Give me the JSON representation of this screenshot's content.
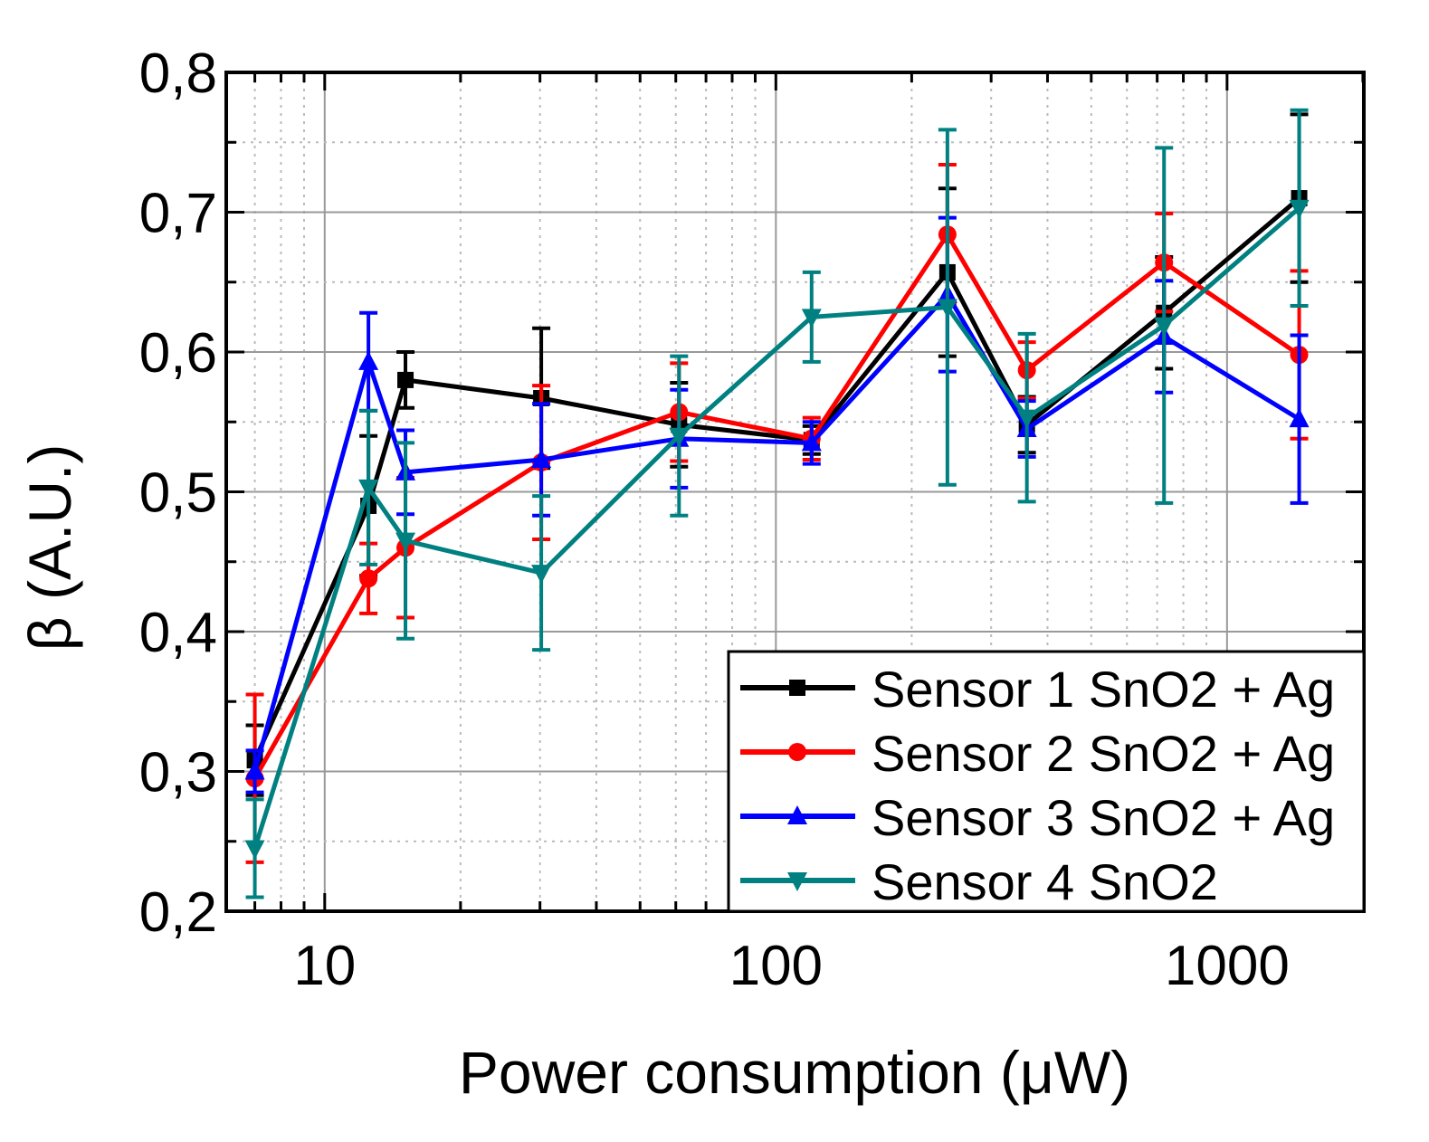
{
  "chart_data": {
    "type": "line",
    "xscale": "log",
    "xlabel": "Power consumption (μW)",
    "ylabel": "β (A.U.)",
    "xlim": [
      6.05,
      2010
    ],
    "ylim": [
      0.2,
      0.8
    ],
    "xticks": [
      10,
      100,
      1000
    ],
    "xtick_labels": [
      "10",
      "100",
      "1000"
    ],
    "yticks": [
      0.2,
      0.3,
      0.4,
      0.5,
      0.6,
      0.7,
      0.8
    ],
    "ytick_labels": [
      "0,2",
      "0,3",
      "0,4",
      "0,5",
      "0,6",
      "0,7",
      "0,8"
    ],
    "grid": true,
    "legend_position": "bottom-right",
    "x": [
      7,
      12.5,
      15.1,
      30.2,
      61,
      120,
      240,
      360,
      725,
      1445
    ],
    "series": [
      {
        "name": "Sensor 1 SnO2 + Ag",
        "color": "#000000",
        "marker": "square",
        "values": [
          0.308,
          0.49,
          0.58,
          0.567,
          0.548,
          0.537,
          0.657,
          0.548,
          0.628,
          0.71
        ],
        "errors": [
          0.025,
          0.05,
          0.02,
          0.05,
          0.03,
          0.01,
          0.06,
          0.02,
          0.04,
          0.06
        ]
      },
      {
        "name": "Sensor 2 SnO2 + Ag",
        "color": "#ff0000",
        "marker": "circle",
        "values": [
          0.295,
          0.438,
          0.46,
          0.521,
          0.557,
          0.538,
          0.684,
          0.587,
          0.664,
          0.598
        ],
        "errors": [
          0.06,
          0.025,
          0.05,
          0.055,
          0.035,
          0.015,
          0.05,
          0.02,
          0.035,
          0.06
        ]
      },
      {
        "name": "Sensor 3 SnO2 + Ag",
        "color": "#0000ff",
        "marker": "triangle-up",
        "values": [
          0.3,
          0.593,
          0.514,
          0.523,
          0.538,
          0.535,
          0.641,
          0.545,
          0.611,
          0.552
        ],
        "errors": [
          0.015,
          0.035,
          0.03,
          0.04,
          0.035,
          0.015,
          0.055,
          0.02,
          0.04,
          0.06
        ]
      },
      {
        "name": "Sensor 4 SnO2",
        "color": "#008080",
        "marker": "triangle-down",
        "values": [
          0.245,
          0.503,
          0.465,
          0.442,
          0.54,
          0.625,
          0.632,
          0.553,
          0.619,
          0.703
        ],
        "errors": [
          0.035,
          0.055,
          0.07,
          0.055,
          0.057,
          0.032,
          0.127,
          0.06,
          0.127,
          0.07
        ]
      }
    ]
  }
}
